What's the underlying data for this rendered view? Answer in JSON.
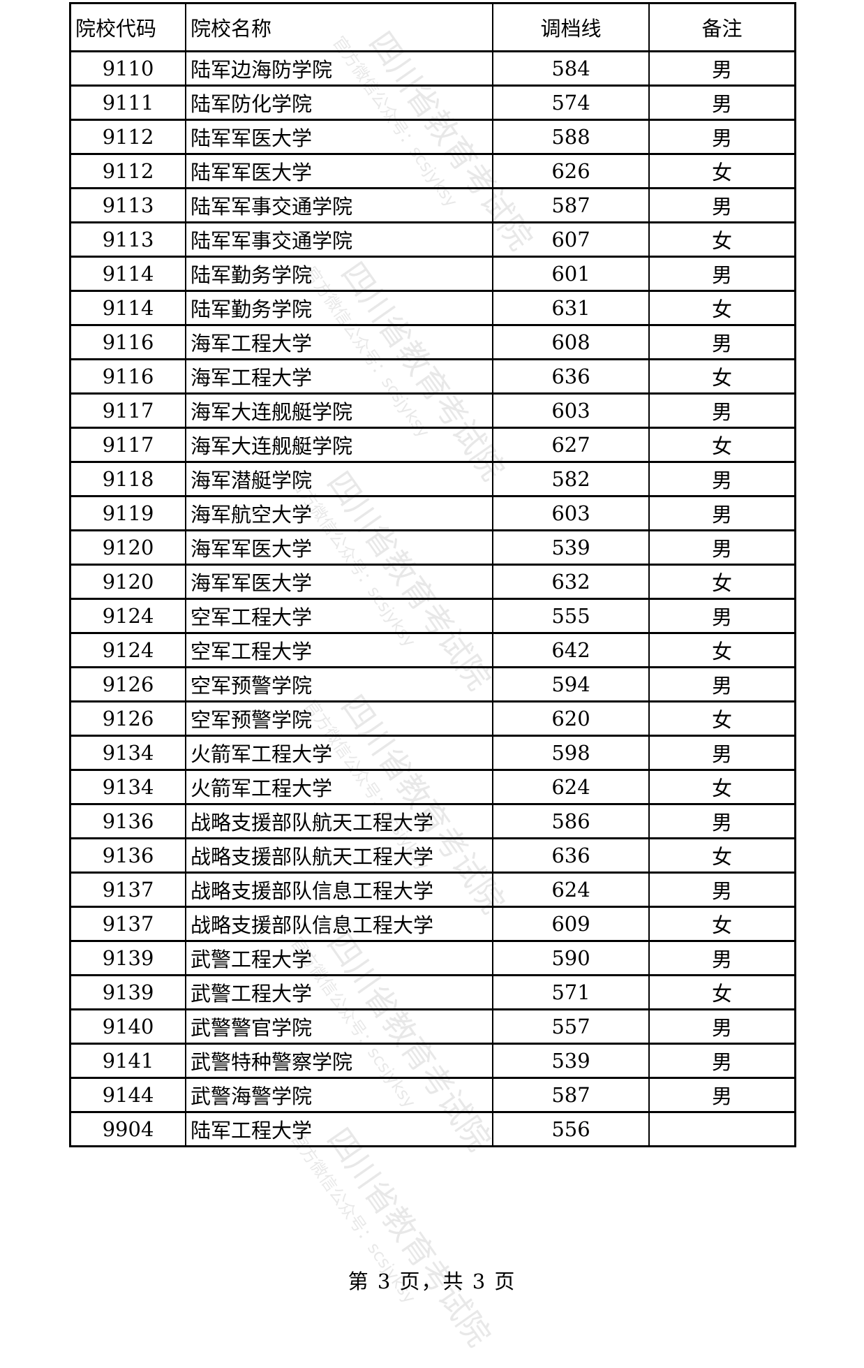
{
  "table": {
    "headers": [
      "院校代码",
      "院校名称",
      "调档线",
      "备注"
    ],
    "rows": [
      [
        "9110",
        "陆军边海防学院",
        "584",
        "男"
      ],
      [
        "9111",
        "陆军防化学院",
        "574",
        "男"
      ],
      [
        "9112",
        "陆军军医大学",
        "588",
        "男"
      ],
      [
        "9112",
        "陆军军医大学",
        "626",
        "女"
      ],
      [
        "9113",
        "陆军军事交通学院",
        "587",
        "男"
      ],
      [
        "9113",
        "陆军军事交通学院",
        "607",
        "女"
      ],
      [
        "9114",
        "陆军勤务学院",
        "601",
        "男"
      ],
      [
        "9114",
        "陆军勤务学院",
        "631",
        "女"
      ],
      [
        "9116",
        "海军工程大学",
        "608",
        "男"
      ],
      [
        "9116",
        "海军工程大学",
        "636",
        "女"
      ],
      [
        "9117",
        "海军大连舰艇学院",
        "603",
        "男"
      ],
      [
        "9117",
        "海军大连舰艇学院",
        "627",
        "女"
      ],
      [
        "9118",
        "海军潜艇学院",
        "582",
        "男"
      ],
      [
        "9119",
        "海军航空大学",
        "603",
        "男"
      ],
      [
        "9120",
        "海军军医大学",
        "539",
        "男"
      ],
      [
        "9120",
        "海军军医大学",
        "632",
        "女"
      ],
      [
        "9124",
        "空军工程大学",
        "555",
        "男"
      ],
      [
        "9124",
        "空军工程大学",
        "642",
        "女"
      ],
      [
        "9126",
        "空军预警学院",
        "594",
        "男"
      ],
      [
        "9126",
        "空军预警学院",
        "620",
        "女"
      ],
      [
        "9134",
        "火箭军工程大学",
        "598",
        "男"
      ],
      [
        "9134",
        "火箭军工程大学",
        "624",
        "女"
      ],
      [
        "9136",
        "战略支援部队航天工程大学",
        "586",
        "男"
      ],
      [
        "9136",
        "战略支援部队航天工程大学",
        "636",
        "女"
      ],
      [
        "9137",
        "战略支援部队信息工程大学",
        "624",
        "男"
      ],
      [
        "9137",
        "战略支援部队信息工程大学",
        "609",
        "女"
      ],
      [
        "9139",
        "武警工程大学",
        "590",
        "男"
      ],
      [
        "9139",
        "武警工程大学",
        "571",
        "女"
      ],
      [
        "9140",
        "武警警官学院",
        "557",
        "男"
      ],
      [
        "9141",
        "武警特种警察学院",
        "539",
        "男"
      ],
      [
        "9144",
        "武警海警学院",
        "587",
        "男"
      ],
      [
        "9904",
        "陆军工程大学",
        "556",
        ""
      ]
    ]
  },
  "footer": "第 3 页，共 3 页",
  "watermark": {
    "title": "四川省教育考试院",
    "subtitle": "官方微信公众号：scsjyksy"
  }
}
